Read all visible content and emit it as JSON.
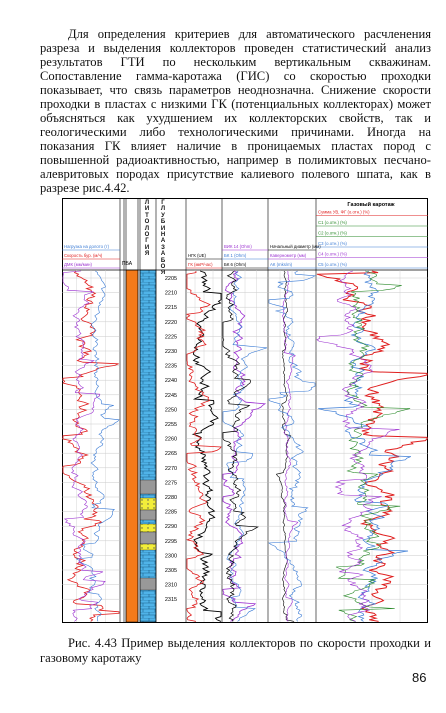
{
  "body_text": "Для определения критериев для автоматического расчленения разреза и выделения коллекторов проведен статистический анализ результатов ГТИ по нескольким вертикальным скважинам. Сопоставление гамма-каротажа (ГИС) со скоростью проходки показывает, что связь параметров неоднозначна. Снижение скорости проходки в пластах с низкими ГК (потенциальных коллекторах) может объясняться как ухудшением их коллекторских свойств, так и геологическими либо технологическими причинами. Иногда на показания ГК влияет наличие в проницаемых пластах пород с повышенной радиоактивностью, например в полимиктовых песчано-алевритовых породах присутствие калиевого полевого шпата, как в разрезе рис.4.42.",
  "figure": {
    "lithology_header": "ЛИТОЛОГИЯ",
    "depth_header": "ГЛУБИНА ЗАБОЯ",
    "pba": "ПБА",
    "gas_title": "Газовый каротаж",
    "tracks": [
      [
        "Нагрузка на долото (т)",
        "Скорость бур. (м/ч)",
        "ДМК (мм/мин)"
      ],
      [
        "НГК (UE)",
        "ГК (мкР/час)"
      ],
      [
        "ВИК 14 (Ohm)",
        "БК 1 (Ohm)",
        "БК 6 (Ohm)"
      ],
      [
        "Начальный диаметр (мм)",
        "Кавернометр (мм)",
        "АК (mks/m)"
      ],
      [
        "Сумма УВ, ФГ (о.отн.) (%)",
        "С1 (о.отн.) (%)",
        "С2 (о.отн.) (%)",
        "С3 (о.отн.) (%)",
        "С4 (о.отн.) (%)",
        "С5 (о.отн.) (%)"
      ]
    ],
    "depths": [
      "2205",
      "2210",
      "2215",
      "2220",
      "2225",
      "2230",
      "2235",
      "2240",
      "2245",
      "2250",
      "2255",
      "2260",
      "2265",
      "2270",
      "2275",
      "2280",
      "2285",
      "2290",
      "2295",
      "2300",
      "2305",
      "2310",
      "2315"
    ]
  },
  "caption": "Рис. 4.43 Пример выделения коллекторов по скорости проходки и газовому каротажу",
  "page_number": "86"
}
